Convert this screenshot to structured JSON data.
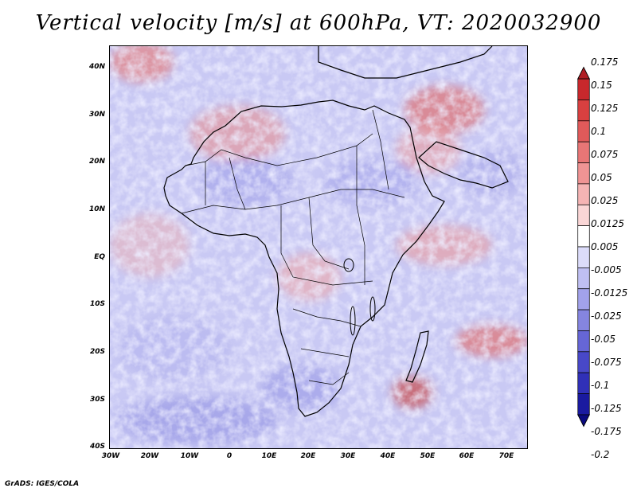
{
  "title": "Vertical velocity [m/s] at 600hPa, VT: 2020032900",
  "credit": "GrADS: IGES/COLA",
  "axes": {
    "y_ticks": [
      "40N",
      "30N",
      "20N",
      "10N",
      "EQ",
      "10S",
      "20S",
      "30S",
      "40S"
    ],
    "x_ticks": [
      "30W",
      "20W",
      "10W",
      "0",
      "10E",
      "20E",
      "30E",
      "40E",
      "50E",
      "60E",
      "70E"
    ]
  },
  "colorbar": {
    "labels": [
      "0.175",
      "0.15",
      "0.125",
      "0.1",
      "0.075",
      "0.05",
      "0.025",
      "0.0125",
      "0.005",
      "-0.005",
      "-0.0125",
      "-0.025",
      "-0.05",
      "-0.075",
      "-0.1",
      "-0.125",
      "-0.175",
      "-0.2"
    ],
    "colors": [
      "#b01e24",
      "#c8282c",
      "#d84040",
      "#e05a5a",
      "#e87676",
      "#ef9494",
      "#f5b4b4",
      "#fad6d6",
      "#ffffff",
      "#dcdcfa",
      "#bfbff2",
      "#a2a2ea",
      "#8585e0",
      "#6666d6",
      "#4848c8",
      "#3030b8",
      "#1a1aa0",
      "#0a0a80"
    ]
  }
}
